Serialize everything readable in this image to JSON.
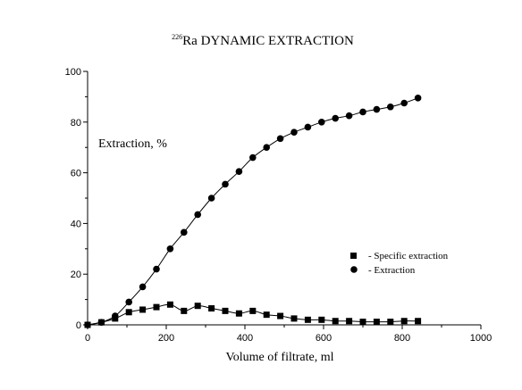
{
  "chart_data": {
    "type": "scatter",
    "title": {
      "superscript": "226",
      "main": "Ra DYNAMIC EXTRACTION"
    },
    "xlabel": "Volume of filtrate, ml",
    "ylabel": "",
    "annotation": "Extraction, %",
    "xlim": [
      0,
      1000
    ],
    "ylim": [
      0,
      100
    ],
    "x_ticks": [
      "0",
      "200",
      "400",
      "600",
      "800",
      "1000"
    ],
    "y_ticks": [
      "0",
      "20",
      "40",
      "60",
      "80",
      "100"
    ],
    "grid": false,
    "legend_position": "right-center",
    "series": [
      {
        "name": "- Specific extraction",
        "marker": "square",
        "x": [
          0,
          35,
          70,
          105,
          140,
          175,
          210,
          245,
          280,
          315,
          350,
          385,
          420,
          455,
          490,
          525,
          560,
          595,
          630,
          665,
          700,
          735,
          770,
          805,
          840
        ],
        "y": [
          0,
          1,
          2.5,
          5,
          6,
          7,
          8,
          5.5,
          7.5,
          6.5,
          5.5,
          4.5,
          5.5,
          4,
          3.5,
          2.5,
          2,
          2,
          1.5,
          1.5,
          1.2,
          1.2,
          1.2,
          1.5,
          1.5
        ]
      },
      {
        "name": "- Extraction",
        "marker": "circle",
        "x": [
          0,
          35,
          70,
          105,
          140,
          175,
          210,
          245,
          280,
          315,
          350,
          385,
          420,
          455,
          490,
          525,
          560,
          595,
          630,
          665,
          700,
          735,
          770,
          805,
          840
        ],
        "y": [
          0,
          1,
          3.5,
          9,
          15,
          22,
          30,
          36.5,
          43.5,
          50,
          55.5,
          60.5,
          66,
          70,
          73.5,
          76,
          78,
          80,
          81.5,
          82.5,
          84,
          85,
          86,
          87.5,
          89.5
        ]
      }
    ]
  }
}
